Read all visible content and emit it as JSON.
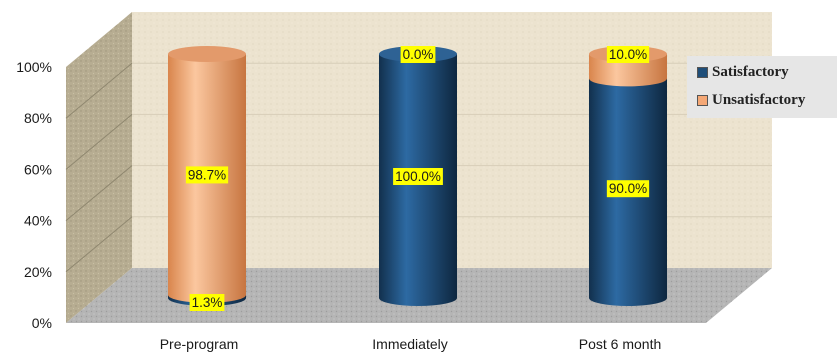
{
  "chart_data": {
    "type": "bar",
    "stacked": true,
    "style": "3d-cylinder",
    "categories": [
      "Pre-program",
      "Immediately",
      "Post 6 month"
    ],
    "series": [
      {
        "name": "Satisfactory",
        "values": [
          1.3,
          100.0,
          90.0
        ],
        "color": "#1f4e79",
        "labels": [
          "1.3%",
          "100.0%",
          "90.0%"
        ]
      },
      {
        "name": "Unsatisfactory",
        "values": [
          98.7,
          0.0,
          10.0
        ],
        "color": "#f5a876",
        "labels": [
          "98.7%",
          "0.0%",
          "10.0%"
        ]
      }
    ],
    "ylim": [
      0,
      100
    ],
    "yticks": [
      "0%",
      "20%",
      "40%",
      "60%",
      "80%",
      "100%"
    ],
    "grid": true,
    "legend_position": "right",
    "label_highlight_color": "#ffff00",
    "wall_color": "#ece3cf",
    "floor_color": "#b5b5b5"
  }
}
